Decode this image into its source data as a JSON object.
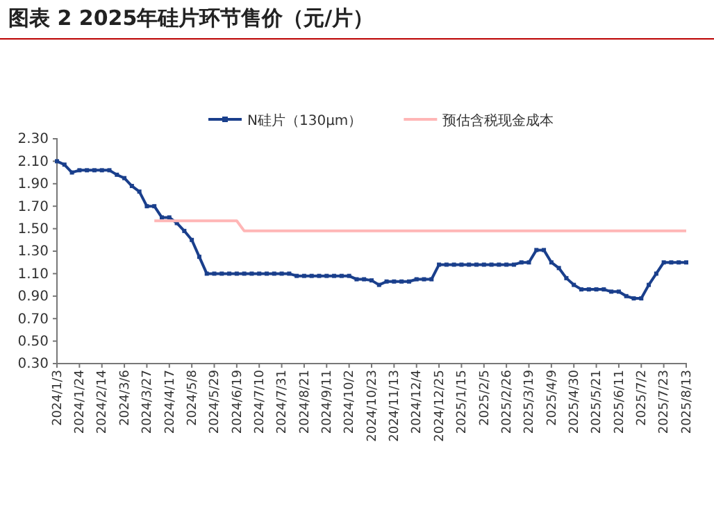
{
  "chart_data": {
    "type": "line",
    "title": "图表 2  2025年硅片环节售价（元/片）",
    "categories": [
      "2024/1/3",
      null,
      null,
      "2024/1/24",
      null,
      null,
      "2024/2/14",
      null,
      null,
      "2024/3/6",
      null,
      null,
      "2024/3/27",
      null,
      null,
      "2024/4/17",
      null,
      null,
      "2024/5/8",
      null,
      null,
      "2024/5/29",
      null,
      null,
      "2024/6/19",
      null,
      null,
      "2024/7/10",
      null,
      null,
      "2024/7/31",
      null,
      null,
      "2024/8/21",
      null,
      null,
      "2024/9/11",
      null,
      null,
      "2024/10/2",
      null,
      null,
      "2024/10/23",
      null,
      null,
      "2024/11/13",
      null,
      null,
      "2024/12/4",
      null,
      null,
      "2024/12/25",
      null,
      null,
      "2025/1/15",
      null,
      null,
      "2025/2/5",
      null,
      null,
      "2025/2/26",
      null,
      null,
      "2025/3/19",
      null,
      null,
      "2025/4/9",
      null,
      null,
      "2025/4/30",
      null,
      null,
      "2025/5/21",
      null,
      null,
      "2025/6/11",
      null,
      null,
      "2025/7/2",
      null,
      null,
      "2025/7/23",
      null,
      null,
      "2025/8/13"
    ],
    "series": [
      {
        "name": "N硅片（130μm）",
        "color": "#1a3f8c",
        "marker": "square",
        "values": [
          2.1,
          2.07,
          2.0,
          2.02,
          2.02,
          2.02,
          2.02,
          2.02,
          1.98,
          1.95,
          1.88,
          1.83,
          1.7,
          1.7,
          1.6,
          1.6,
          1.55,
          1.48,
          1.4,
          1.25,
          1.1,
          1.1,
          1.1,
          1.1,
          1.1,
          1.1,
          1.1,
          1.1,
          1.1,
          1.1,
          1.1,
          1.1,
          1.08,
          1.08,
          1.08,
          1.08,
          1.08,
          1.08,
          1.08,
          1.08,
          1.05,
          1.05,
          1.04,
          1.0,
          1.03,
          1.03,
          1.03,
          1.03,
          1.05,
          1.05,
          1.05,
          1.18,
          1.18,
          1.18,
          1.18,
          1.18,
          1.18,
          1.18,
          1.18,
          1.18,
          1.18,
          1.18,
          1.2,
          1.2,
          1.31,
          1.31,
          1.2,
          1.15,
          1.06,
          1.0,
          0.96,
          0.96,
          0.96,
          0.96,
          0.94,
          0.94,
          0.9,
          0.88,
          0.88,
          1.0,
          1.1,
          1.2,
          1.2,
          1.2,
          1.2
        ]
      },
      {
        "name": "预估含税现金成本",
        "color": "#ffb6b6",
        "marker": "none",
        "values": [
          null,
          null,
          null,
          null,
          null,
          null,
          null,
          null,
          null,
          null,
          null,
          null,
          null,
          1.57,
          1.57,
          1.57,
          1.57,
          1.57,
          1.57,
          1.57,
          1.57,
          1.57,
          1.57,
          1.57,
          1.57,
          1.48,
          1.48,
          1.48,
          1.48,
          1.48,
          1.48,
          1.48,
          1.48,
          1.48,
          1.48,
          1.48,
          1.48,
          1.48,
          1.48,
          1.48,
          1.48,
          1.48,
          1.48,
          1.48,
          1.48,
          1.48,
          1.48,
          1.48,
          1.48,
          1.48,
          1.48,
          1.48,
          1.48,
          1.48,
          1.48,
          1.48,
          1.48,
          1.48,
          1.48,
          1.48,
          1.48,
          1.48,
          1.48,
          1.48,
          1.48,
          1.48,
          1.48,
          1.48,
          1.48,
          1.48,
          1.48,
          1.48,
          1.48,
          1.48,
          1.48,
          1.48,
          1.48,
          1.48,
          1.48,
          1.48,
          1.48,
          1.48,
          1.48,
          1.48,
          1.48
        ]
      }
    ],
    "ylim": [
      0.3,
      2.3
    ],
    "yticks": [
      {
        "value": 0.3,
        "label": "0.30"
      },
      {
        "value": 0.5,
        "label": "0.50"
      },
      {
        "value": 0.7,
        "label": "0.70"
      },
      {
        "value": 0.9,
        "label": "0.90"
      },
      {
        "value": 1.1,
        "label": "1.10"
      },
      {
        "value": 1.3,
        "label": "1.30"
      },
      {
        "value": 1.5,
        "label": "1.50"
      },
      {
        "value": 1.7,
        "label": "1.70"
      },
      {
        "value": 1.9,
        "label": "1.90"
      },
      {
        "value": 2.1,
        "label": "2.10"
      },
      {
        "value": 2.3,
        "label": "2.30"
      }
    ],
    "grid": false,
    "legend": "top",
    "line_style": "solid"
  }
}
